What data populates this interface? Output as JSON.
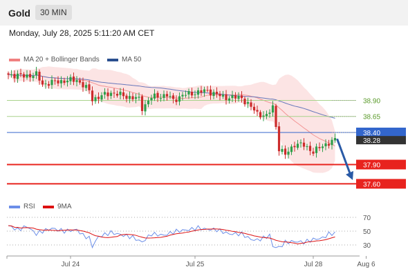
{
  "header": {
    "title": "Gold",
    "timeframe": "30 MIN"
  },
  "datetime": "Monday, July 28, 2025 5:11:20 AM CET",
  "legend_top": {
    "ma20_label": "MA 20 + Bollinger Bands",
    "ma50_label": "MA 50"
  },
  "legend_bottom": {
    "rsi_label": "RSI",
    "ma9_label": "9MA"
  },
  "colors": {
    "bull": "#2e9e4a",
    "bear": "#cc2b2b",
    "ma20": "#f08080",
    "band": "#fbd9d9",
    "ma50": "#6677bb",
    "resistance": "#a8d28a",
    "current": "#3366cc",
    "support": "#e8231e",
    "arrow": "#2a5aa6",
    "rsi": "#6b8ee8",
    "ma9": "#dd1111",
    "label_dark": "#333333"
  },
  "chart_data": {
    "type": "candlestick",
    "price_range": [
      37.4,
      39.55
    ],
    "levels": [
      {
        "value": 38.9,
        "label": "38.90",
        "kind": "resistance"
      },
      {
        "value": 38.65,
        "label": "38.65",
        "kind": "resistance"
      },
      {
        "value": 38.4,
        "label": "38.40",
        "kind": "current"
      },
      {
        "value": 37.9,
        "label": "37.90",
        "kind": "support"
      },
      {
        "value": 37.6,
        "label": "37.60",
        "kind": "support"
      }
    ],
    "last_price": {
      "value": 38.28,
      "label": "38.28"
    },
    "forecast_arrow": {
      "from": 38.3,
      "to": 37.66
    },
    "anchors_close": [
      [
        0,
        39.3
      ],
      [
        5,
        39.28
      ],
      [
        9,
        39.3
      ],
      [
        11,
        39.15
      ],
      [
        14,
        39.18
      ],
      [
        17,
        39.2
      ],
      [
        22,
        39.22
      ],
      [
        26,
        39.05
      ],
      [
        27,
        38.92
      ],
      [
        29,
        38.95
      ],
      [
        33,
        39.02
      ],
      [
        38,
        38.96
      ],
      [
        42,
        38.92
      ],
      [
        43,
        38.78
      ],
      [
        46,
        38.95
      ],
      [
        51,
        38.98
      ],
      [
        53,
        38.9
      ],
      [
        56,
        38.98
      ],
      [
        60,
        39.02
      ],
      [
        64,
        39.05
      ],
      [
        69,
        38.95
      ],
      [
        75,
        38.94
      ],
      [
        77,
        38.84
      ],
      [
        80,
        38.7
      ],
      [
        83,
        38.65
      ],
      [
        85,
        38.8
      ],
      [
        86,
        38.5
      ],
      [
        87,
        38.15
      ],
      [
        89,
        38.05
      ],
      [
        92,
        38.22
      ],
      [
        95,
        38.2
      ],
      [
        98,
        38.1
      ],
      [
        102,
        38.22
      ],
      [
        105,
        38.28
      ]
    ],
    "x_ticks": [
      {
        "label": "Jul 24",
        "i": 20
      },
      {
        "label": "Jul 25",
        "i": 60
      },
      {
        "label": "Jul 28",
        "i": 98
      },
      {
        "label": "Aug 6",
        "i": 115
      }
    ],
    "rsi": {
      "range": [
        15,
        80
      ],
      "ticks": [
        70,
        50,
        30
      ],
      "levels_dotted": [
        70,
        50,
        30
      ],
      "anchors": [
        [
          0,
          58
        ],
        [
          3,
          52
        ],
        [
          6,
          57
        ],
        [
          9,
          46
        ],
        [
          11,
          50
        ],
        [
          14,
          54
        ],
        [
          18,
          50
        ],
        [
          22,
          52
        ],
        [
          24,
          44
        ],
        [
          26,
          40
        ],
        [
          27,
          28
        ],
        [
          29,
          42
        ],
        [
          33,
          48
        ],
        [
          37,
          44
        ],
        [
          40,
          41
        ],
        [
          43,
          34
        ],
        [
          46,
          46
        ],
        [
          50,
          44
        ],
        [
          54,
          50
        ],
        [
          58,
          52
        ],
        [
          61,
          55
        ],
        [
          63,
          53
        ],
        [
          67,
          52
        ],
        [
          71,
          46
        ],
        [
          75,
          46
        ],
        [
          78,
          38
        ],
        [
          80,
          37
        ],
        [
          82,
          40
        ],
        [
          84,
          44
        ],
        [
          85,
          28
        ],
        [
          87,
          26
        ],
        [
          89,
          34
        ],
        [
          92,
          35
        ],
        [
          95,
          34
        ],
        [
          98,
          38
        ],
        [
          101,
          40
        ],
        [
          103,
          46
        ],
        [
          105,
          47
        ]
      ]
    }
  }
}
